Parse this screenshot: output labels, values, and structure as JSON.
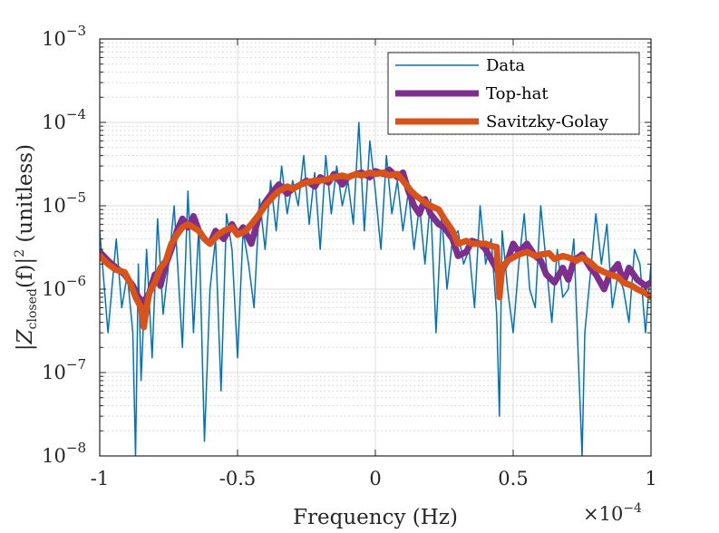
{
  "chart_data": {
    "type": "line",
    "xlabel": "Frequency (Hz)",
    "ylabel_parts": {
      "left": "|Z",
      "subscript": "closed",
      "middle": "(f)|",
      "superscript": "2",
      "right": " (unitless)"
    },
    "x_multiplier": {
      "base": "×10",
      "exponent": "−4"
    },
    "xlim": [
      -0.0001,
      0.0001
    ],
    "ylim": [
      1e-08,
      0.001
    ],
    "yscale": "log",
    "grid": true,
    "minor_grid": true,
    "legend_position": "top-right",
    "x_ticks": [
      {
        "value": -0.0001,
        "label": "-1"
      },
      {
        "value": -5e-05,
        "label": "-0.5"
      },
      {
        "value": 0,
        "label": "0"
      },
      {
        "value": 5e-05,
        "label": "0.5"
      },
      {
        "value": 0.0001,
        "label": "1"
      }
    ],
    "y_ticks": [
      {
        "value": 1e-08,
        "base": "10",
        "exp": "−8"
      },
      {
        "value": 1e-07,
        "base": "10",
        "exp": "−7"
      },
      {
        "value": 1e-06,
        "base": "10",
        "exp": "−6"
      },
      {
        "value": 1e-05,
        "base": "10",
        "exp": "−5"
      },
      {
        "value": 0.0001,
        "base": "10",
        "exp": "−4"
      },
      {
        "value": 0.001,
        "base": "10",
        "exp": "−3"
      }
    ],
    "series": [
      {
        "name": "Data",
        "color": "#0072BD",
        "width": 1.5,
        "x": [
          -0.0001,
          -9.7e-05,
          -9.4e-05,
          -9.2e-05,
          -9e-05,
          -8.8e-05,
          -8.7e-05,
          -8.6e-05,
          -8.5e-05,
          -8.4e-05,
          -8.3e-05,
          -8.1e-05,
          -7.9e-05,
          -7.7e-05,
          -7.5e-05,
          -7.3e-05,
          -7e-05,
          -6.8e-05,
          -6.6e-05,
          -6.4e-05,
          -6.2e-05,
          -6e-05,
          -5.8e-05,
          -5.6e-05,
          -5.4e-05,
          -5.2e-05,
          -5e-05,
          -4.8e-05,
          -4.6e-05,
          -4.4e-05,
          -4.2e-05,
          -4e-05,
          -3.8e-05,
          -3.6e-05,
          -3.4e-05,
          -3.2e-05,
          -3e-05,
          -2.8e-05,
          -2.6e-05,
          -2.4e-05,
          -2.2e-05,
          -2e-05,
          -1.8e-05,
          -1.6e-05,
          -1.4e-05,
          -1.2e-05,
          -1e-05,
          -8e-06,
          -6e-06,
          -4e-06,
          -2e-06,
          0,
          2e-06,
          4e-06,
          6e-06,
          8e-06,
          1e-05,
          1.2e-05,
          1.4e-05,
          1.6e-05,
          1.8e-05,
          2e-05,
          2.2e-05,
          2.4e-05,
          2.6e-05,
          2.8e-05,
          3e-05,
          3.2e-05,
          3.4e-05,
          3.6e-05,
          3.8e-05,
          4e-05,
          4.2e-05,
          4.4e-05,
          4.5e-05,
          4.6e-05,
          4.8e-05,
          5e-05,
          5.2e-05,
          5.4e-05,
          5.6e-05,
          5.8e-05,
          6e-05,
          6.2e-05,
          6.4e-05,
          6.6e-05,
          6.8e-05,
          7e-05,
          7.2e-05,
          7.4e-05,
          7.5e-05,
          7.6e-05,
          7.8e-05,
          8e-05,
          8.2e-05,
          8.4e-05,
          8.6e-05,
          8.8e-05,
          9e-05,
          9.2e-05,
          9.4e-05,
          9.6e-05,
          9.8e-05,
          0.0001
        ],
        "y": [
          5e-06,
          3e-07,
          4e-06,
          6e-07,
          1.5e-06,
          3e-07,
          1e-08,
          2e-06,
          8e-08,
          5e-07,
          3e-06,
          1.5e-07,
          7e-06,
          5e-07,
          2e-06,
          1e-05,
          2e-07,
          1.5e-05,
          3e-07,
          6e-06,
          1.5e-08,
          1e-06,
          4e-06,
          6e-08,
          8e-06,
          3e-06,
          1.5e-07,
          5e-06,
          2e-06,
          6e-07,
          1.2e-05,
          3e-06,
          2e-05,
          5e-06,
          3e-05,
          8e-06,
          2e-05,
          1e-05,
          4e-05,
          6e-06,
          2.5e-05,
          3e-06,
          4e-05,
          8e-06,
          3e-05,
          1e-05,
          2e-05,
          6e-06,
          0.0001,
          5e-06,
          6e-05,
          1.5e-05,
          3e-06,
          4e-05,
          8e-06,
          2e-05,
          5e-06,
          1.5e-05,
          3e-06,
          1e-05,
          2e-06,
          1.2e-05,
          3e-07,
          8e-06,
          1e-06,
          4e-06,
          5e-06,
          2e-06,
          3e-06,
          6e-07,
          1e-05,
          2e-06,
          4e-06,
          5e-07,
          3e-08,
          5e-06,
          1e-06,
          3e-07,
          2e-06,
          8e-06,
          1e-06,
          6e-07,
          1e-05,
          2e-06,
          4e-07,
          3e-06,
          8e-07,
          1e-06,
          4e-06,
          7e-08,
          1e-08,
          3e-07,
          1.5e-06,
          8e-06,
          2e-06,
          6e-06,
          6e-07,
          1.5e-06,
          1e-06,
          4e-07,
          3e-06,
          2e-06,
          3e-07,
          2e-06
        ]
      },
      {
        "name": "Top-hat",
        "color": "#7E2F8E",
        "width": 7,
        "x": [
          -0.0001,
          -9.7e-05,
          -9.4e-05,
          -9.1e-05,
          -8.8e-05,
          -8.6e-05,
          -8.4e-05,
          -8.2e-05,
          -8e-05,
          -7.8e-05,
          -7.6e-05,
          -7.4e-05,
          -7.2e-05,
          -7e-05,
          -6.8e-05,
          -6.6e-05,
          -6.4e-05,
          -6.2e-05,
          -6e-05,
          -5.8e-05,
          -5.5e-05,
          -5.2e-05,
          -5e-05,
          -4.8e-05,
          -4.5e-05,
          -4.2e-05,
          -4e-05,
          -3.7e-05,
          -3.5e-05,
          -3.2e-05,
          -3e-05,
          -2.7e-05,
          -2.5e-05,
          -2.2e-05,
          -2e-05,
          -1.7e-05,
          -1.5e-05,
          -1.2e-05,
          -1e-05,
          -7e-06,
          -5e-06,
          -2e-06,
          0,
          3e-06,
          5e-06,
          8e-06,
          1e-05,
          1.2e-05,
          1.4e-05,
          1.6e-05,
          1.8e-05,
          2e-05,
          2.3e-05,
          2.5e-05,
          2.8e-05,
          3e-05,
          3.3e-05,
          3.5e-05,
          3.8e-05,
          4e-05,
          4.3e-05,
          4.5e-05,
          4.8e-05,
          5e-05,
          5.2e-05,
          5.5e-05,
          5.8e-05,
          6e-05,
          6.2e-05,
          6.5e-05,
          6.8e-05,
          7e-05,
          7.2e-05,
          7.5e-05,
          7.8e-05,
          8e-05,
          8.3e-05,
          8.5e-05,
          8.8e-05,
          9e-05,
          9.2e-05,
          9.5e-05,
          9.8e-05,
          0.0001
        ],
        "y": [
          2.8e-06,
          2.2e-06,
          1.8e-06,
          1.5e-06,
          1.1e-06,
          8e-07,
          7e-07,
          9e-07,
          1.5e-06,
          1.1e-06,
          2e-06,
          3e-06,
          5e-06,
          7e-06,
          5.5e-06,
          7.5e-06,
          5e-06,
          4e-06,
          3.5e-06,
          5e-06,
          4e-06,
          6e-06,
          4.5e-06,
          5.5e-06,
          3.5e-06,
          8e-06,
          1.1e-05,
          1.5e-05,
          1.8e-05,
          1.4e-05,
          1.6e-05,
          1.8e-05,
          2e-05,
          1.7e-05,
          2.2e-05,
          1.9e-05,
          2.4e-05,
          1.8e-05,
          2.2e-05,
          2.4e-05,
          2.5e-05,
          2.2e-05,
          2.6e-05,
          2.4e-05,
          2.7e-05,
          2.2e-05,
          2.5e-05,
          1.5e-05,
          1e-05,
          8e-06,
          1.2e-05,
          8e-06,
          6e-06,
          5.5e-06,
          4e-06,
          2.5e-06,
          2.8e-06,
          3.8e-06,
          3.5e-06,
          3e-06,
          2e-06,
          1.5e-06,
          2.2e-06,
          3.5e-06,
          2.8e-06,
          3.5e-06,
          2.5e-06,
          2.2e-06,
          1.5e-06,
          1.2e-06,
          1.8e-06,
          1.3e-06,
          2.2e-06,
          2.6e-06,
          1.8e-06,
          1.5e-06,
          1e-06,
          1.5e-06,
          2e-06,
          1.2e-06,
          1.8e-06,
          1.3e-06,
          1.1e-06,
          1.2e-06
        ]
      },
      {
        "name": "Savitzky-Golay",
        "color": "#D95319",
        "width": 7,
        "x": [
          -0.0001,
          -9.7e-05,
          -9.4e-05,
          -9.1e-05,
          -8.9e-05,
          -8.7e-05,
          -8.5e-05,
          -8.4e-05,
          -8.3e-05,
          -8.2e-05,
          -8e-05,
          -7.8e-05,
          -7.6e-05,
          -7.4e-05,
          -7.2e-05,
          -7e-05,
          -6.8e-05,
          -6.6e-05,
          -6.4e-05,
          -6.2e-05,
          -6e-05,
          -5.7e-05,
          -5.5e-05,
          -5.2e-05,
          -5e-05,
          -4.7e-05,
          -4.5e-05,
          -4.2e-05,
          -4e-05,
          -3.7e-05,
          -3.5e-05,
          -3.2e-05,
          -3e-05,
          -2.7e-05,
          -2.5e-05,
          -2.2e-05,
          -2e-05,
          -1.7e-05,
          -1.5e-05,
          -1.2e-05,
          -1e-05,
          -7e-06,
          -5e-06,
          -2e-06,
          0,
          3e-06,
          5e-06,
          8e-06,
          1e-05,
          1.3e-05,
          1.5e-05,
          1.8e-05,
          2e-05,
          2.3e-05,
          2.5e-05,
          2.8e-05,
          3e-05,
          3.3e-05,
          3.5e-05,
          3.8e-05,
          4e-05,
          4.2e-05,
          4.4e-05,
          4.5e-05,
          4.6e-05,
          4.8e-05,
          5e-05,
          5.2e-05,
          5.5e-05,
          5.8e-05,
          6e-05,
          6.3e-05,
          6.5e-05,
          6.8e-05,
          7e-05,
          7.3e-05,
          7.5e-05,
          7.8e-05,
          8e-05,
          8.3e-05,
          8.5e-05,
          8.8e-05,
          9e-05,
          9.3e-05,
          9.5e-05,
          9.8e-05,
          0.0001
        ],
        "y": [
          2.5e-06,
          2e-06,
          1.7e-06,
          1.6e-06,
          1.2e-06,
          8e-07,
          6e-07,
          3.5e-07,
          6e-07,
          9e-07,
          1.2e-06,
          1.8e-06,
          2.2e-06,
          3.5e-06,
          4.5e-06,
          5.5e-06,
          6e-06,
          5.5e-06,
          5e-06,
          4e-06,
          3.5e-06,
          4.5e-06,
          5e-06,
          5.5e-06,
          4.5e-06,
          5e-06,
          6e-06,
          8e-06,
          1e-05,
          1.3e-05,
          1.5e-05,
          1.7e-05,
          1.6e-05,
          1.8e-05,
          1.9e-05,
          2e-05,
          2e-05,
          2.1e-05,
          2.2e-05,
          2.3e-05,
          2.2e-05,
          2.4e-05,
          2.3e-05,
          2.5e-05,
          2.4e-05,
          2.5e-05,
          2.3e-05,
          2.4e-05,
          2e-05,
          1.5e-05,
          1.3e-05,
          1.1e-05,
          1e-05,
          9e-06,
          7e-06,
          5e-06,
          3.5e-06,
          3.8e-06,
          3.5e-06,
          3.5e-06,
          3.5e-06,
          3.3e-06,
          3.2e-06,
          8e-07,
          1.8e-06,
          2.2e-06,
          2.4e-06,
          2.6e-06,
          2.8e-06,
          2.5e-06,
          2.6e-06,
          2.7e-06,
          2.3e-06,
          2.5e-06,
          2.4e-06,
          2.2e-06,
          2.4e-06,
          2.1e-06,
          1.8e-06,
          1.6e-06,
          1.5e-06,
          1.4e-06,
          1.2e-06,
          1.1e-06,
          1e-06,
          9e-07,
          8e-07
        ]
      }
    ]
  }
}
